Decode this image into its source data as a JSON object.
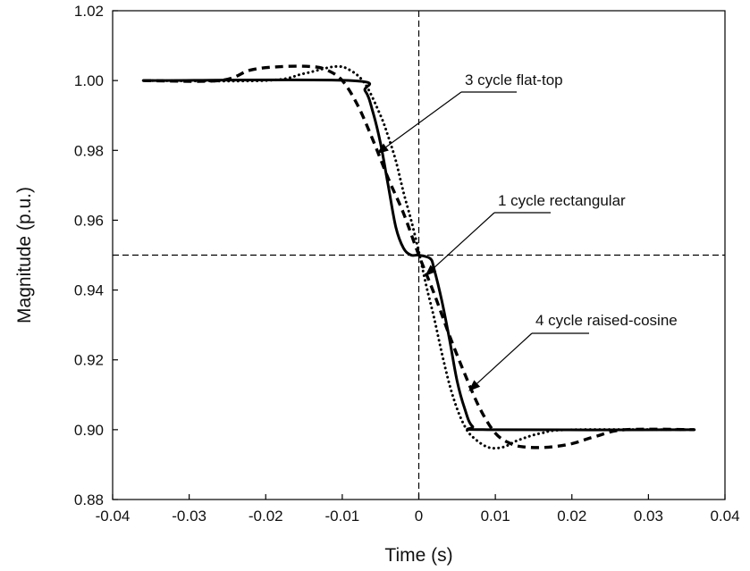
{
  "chart_data": {
    "type": "line",
    "xlabel": "Time (s)",
    "ylabel": "Magnitude (p.u.)",
    "xlim": [
      -0.04,
      0.04
    ],
    "ylim": [
      0.88,
      1.02
    ],
    "x_ticks": [
      -0.04,
      -0.03,
      -0.02,
      -0.01,
      0,
      0.01,
      0.02,
      0.03,
      0.04
    ],
    "y_ticks": [
      0.88,
      0.9,
      0.92,
      0.94,
      0.96,
      0.98,
      1.0,
      1.02
    ],
    "x_tick_labels": [
      "-0.04",
      "-0.03",
      "-0.02",
      "-0.01",
      "0",
      "0.01",
      "0.02",
      "0.03",
      "0.04"
    ],
    "y_tick_labels": [
      "0.88",
      "0.90",
      "0.92",
      "0.94",
      "0.96",
      "0.98",
      "1.00",
      "1.02"
    ],
    "grid": false,
    "reference_lines": {
      "vertical_x": 0,
      "horizontal_y": 0.95
    },
    "series": [
      {
        "style": "solid",
        "color": "#000000",
        "x": [
          -0.035,
          -0.009,
          -0.007,
          -0.006,
          -0.005,
          -0.004,
          -0.003,
          -0.002,
          -0.001,
          0,
          0.0015,
          0.002,
          0.003,
          0.004,
          0.005,
          0.006,
          0.007,
          0.009,
          0.036
        ],
        "y": [
          1.0,
          1.0,
          0.997,
          0.991,
          0.982,
          0.97,
          0.958,
          0.952,
          0.95,
          0.95,
          0.949,
          0.946,
          0.937,
          0.926,
          0.914,
          0.906,
          0.901,
          0.9,
          0.9
        ]
      },
      {
        "style": "dotted",
        "color": "#000000",
        "x": [
          -0.036,
          -0.02,
          -0.015,
          -0.011,
          -0.009,
          -0.007,
          -0.005,
          -0.004,
          -0.003,
          -0.002,
          -0.001,
          0,
          0.001,
          0.002,
          0.003,
          0.004,
          0.005,
          0.006,
          0.007,
          0.009,
          0.011,
          0.013,
          0.016,
          0.02,
          0.036
        ],
        "y": [
          1.0,
          1.0,
          1.002,
          1.004,
          1.003,
          0.999,
          0.99,
          0.984,
          0.977,
          0.968,
          0.96,
          0.951,
          0.941,
          0.932,
          0.922,
          0.913,
          0.906,
          0.901,
          0.898,
          0.895,
          0.895,
          0.897,
          0.899,
          0.9,
          0.9
        ]
      },
      {
        "style": "dashed",
        "color": "#000000",
        "x": [
          -0.036,
          -0.026,
          -0.022,
          -0.018,
          -0.014,
          -0.012,
          -0.01,
          -0.008,
          -0.006,
          -0.004,
          -0.002,
          0,
          0.002,
          0.004,
          0.006,
          0.008,
          0.01,
          0.012,
          0.014,
          0.017,
          0.02,
          0.023,
          0.027,
          0.036
        ],
        "y": [
          1.0,
          1.0,
          1.003,
          1.004,
          1.004,
          1.003,
          1.0,
          0.993,
          0.983,
          0.972,
          0.962,
          0.95,
          0.939,
          0.927,
          0.916,
          0.906,
          0.899,
          0.896,
          0.895,
          0.895,
          0.896,
          0.898,
          0.9,
          0.9
        ]
      }
    ],
    "annotations": [
      {
        "text": "3 cycle flat-top",
        "target": [
          -0.0055,
          0.979
        ]
      },
      {
        "text": "1 cycle rectangular",
        "target": [
          0.0008,
          0.944
        ]
      },
      {
        "text": "4 cycle raised-cosine",
        "target": [
          0.0065,
          0.911
        ]
      }
    ]
  }
}
